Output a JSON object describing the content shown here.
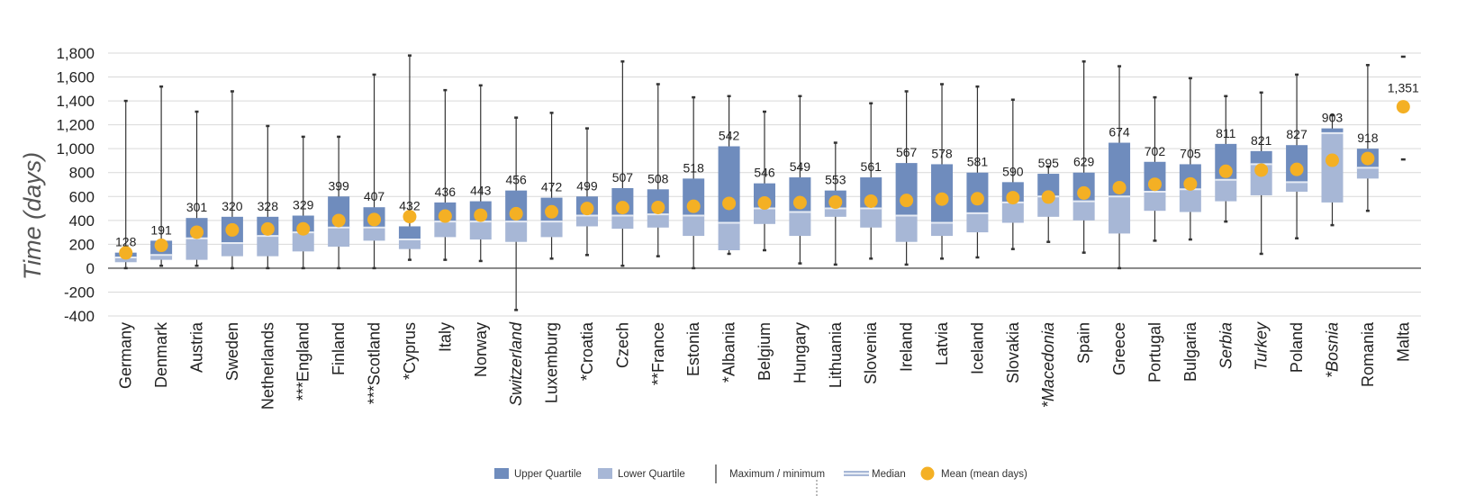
{
  "chart_data": {
    "type": "box",
    "ylabel": "Time (days)",
    "ylim": [
      -400,
      1800
    ],
    "yticks": [
      "-400",
      "-200",
      "0",
      "200",
      "400",
      "600",
      "800",
      "1,000",
      "1,200",
      "1,400",
      "1,600",
      "1,800"
    ],
    "ytick_values": [
      -400,
      -200,
      0,
      200,
      400,
      600,
      800,
      1000,
      1200,
      1400,
      1600,
      1800
    ],
    "grid": true,
    "legend_position": "bottom",
    "colors": {
      "upper": "#6f8cbd",
      "lower": "#a7b7d6",
      "median": "#e6ebf4",
      "mean": "#f4b024",
      "whisker": "#333333"
    },
    "legend": {
      "upper": "Upper Quartile",
      "lower": "Lower Quartile",
      "maxmin": "Maximum / minimum",
      "median": "Median",
      "mean": "Mean (mean days)"
    },
    "countries": [
      {
        "name": "Germany",
        "italic": false,
        "min": 0,
        "q1": 50,
        "median": 90,
        "q3": 130,
        "max": 1400,
        "mean": 128,
        "mean_label": "128"
      },
      {
        "name": "Denmark",
        "italic": false,
        "min": 20,
        "q1": 70,
        "median": 110,
        "q3": 230,
        "max": 1520,
        "mean": 191,
        "mean_label": "191"
      },
      {
        "name": "Austria",
        "italic": false,
        "min": 20,
        "q1": 70,
        "median": 250,
        "q3": 420,
        "max": 1310,
        "mean": 301,
        "mean_label": "301"
      },
      {
        "name": "Sweden",
        "italic": false,
        "min": 0,
        "q1": 100,
        "median": 210,
        "q3": 430,
        "max": 1480,
        "mean": 320,
        "mean_label": "320"
      },
      {
        "name": "Netherlands",
        "italic": false,
        "min": 0,
        "q1": 100,
        "median": 270,
        "q3": 430,
        "max": 1190,
        "mean": 328,
        "mean_label": "328"
      },
      {
        "name": "***England",
        "italic": false,
        "min": 0,
        "q1": 140,
        "median": 300,
        "q3": 440,
        "max": 1100,
        "mean": 329,
        "mean_label": "329"
      },
      {
        "name": "Finland",
        "italic": false,
        "min": 0,
        "q1": 180,
        "median": 340,
        "q3": 600,
        "max": 1100,
        "mean": 399,
        "mean_label": "399"
      },
      {
        "name": "***Scotland",
        "italic": false,
        "min": 0,
        "q1": 230,
        "median": 340,
        "q3": 510,
        "max": 1620,
        "mean": 407,
        "mean_label": "407"
      },
      {
        "name": "*Cyprus",
        "italic": false,
        "min": 70,
        "q1": 160,
        "median": 240,
        "q3": 350,
        "max": 1780,
        "mean": 432,
        "mean_label": "432"
      },
      {
        "name": "Italy",
        "italic": false,
        "min": 70,
        "q1": 260,
        "median": 390,
        "q3": 550,
        "max": 1490,
        "mean": 436,
        "mean_label": "436"
      },
      {
        "name": "Norway",
        "italic": false,
        "min": 60,
        "q1": 240,
        "median": 390,
        "q3": 560,
        "max": 1530,
        "mean": 443,
        "mean_label": "443"
      },
      {
        "name": "Switzerland",
        "italic": true,
        "min": -350,
        "q1": 220,
        "median": 390,
        "q3": 650,
        "max": 1260,
        "mean": 456,
        "mean_label": "456"
      },
      {
        "name": "Luxemburg",
        "italic": false,
        "min": 80,
        "q1": 260,
        "median": 390,
        "q3": 590,
        "max": 1300,
        "mean": 472,
        "mean_label": "472"
      },
      {
        "name": "*Croatia",
        "italic": false,
        "min": 110,
        "q1": 350,
        "median": 440,
        "q3": 600,
        "max": 1170,
        "mean": 499,
        "mean_label": "499"
      },
      {
        "name": "Czech",
        "italic": false,
        "min": 20,
        "q1": 330,
        "median": 440,
        "q3": 670,
        "max": 1730,
        "mean": 507,
        "mean_label": "507"
      },
      {
        "name": "**France",
        "italic": false,
        "min": 100,
        "q1": 340,
        "median": 450,
        "q3": 660,
        "max": 1540,
        "mean": 508,
        "mean_label": "508"
      },
      {
        "name": "Estonia",
        "italic": false,
        "min": 0,
        "q1": 270,
        "median": 440,
        "q3": 750,
        "max": 1430,
        "mean": 518,
        "mean_label": "518"
      },
      {
        "name": "*Albania",
        "italic": false,
        "min": 120,
        "q1": 150,
        "median": 380,
        "q3": 1020,
        "max": 1440,
        "mean": 542,
        "mean_label": "542"
      },
      {
        "name": "Belgium",
        "italic": false,
        "min": 150,
        "q1": 370,
        "median": 500,
        "q3": 710,
        "max": 1310,
        "mean": 546,
        "mean_label": "546"
      },
      {
        "name": "Hungary",
        "italic": false,
        "min": 40,
        "q1": 270,
        "median": 470,
        "q3": 760,
        "max": 1440,
        "mean": 549,
        "mean_label": "549"
      },
      {
        "name": "Lithuania",
        "italic": false,
        "min": 30,
        "q1": 430,
        "median": 500,
        "q3": 650,
        "max": 1050,
        "mean": 553,
        "mean_label": "553"
      },
      {
        "name": "Slovenia",
        "italic": false,
        "min": 80,
        "q1": 340,
        "median": 500,
        "q3": 760,
        "max": 1380,
        "mean": 561,
        "mean_label": "561"
      },
      {
        "name": "Ireland",
        "italic": false,
        "min": 30,
        "q1": 220,
        "median": 440,
        "q3": 880,
        "max": 1480,
        "mean": 567,
        "mean_label": "567"
      },
      {
        "name": "Latvia",
        "italic": false,
        "min": 80,
        "q1": 270,
        "median": 380,
        "q3": 870,
        "max": 1540,
        "mean": 578,
        "mean_label": "578"
      },
      {
        "name": "Iceland",
        "italic": false,
        "min": 90,
        "q1": 300,
        "median": 460,
        "q3": 800,
        "max": 1520,
        "mean": 581,
        "mean_label": "581"
      },
      {
        "name": "Slovakia",
        "italic": false,
        "min": 160,
        "q1": 380,
        "median": 550,
        "q3": 720,
        "max": 1410,
        "mean": 590,
        "mean_label": "590"
      },
      {
        "name": "*Macedonia",
        "italic": true,
        "min": 220,
        "q1": 430,
        "median": 600,
        "q3": 790,
        "max": 850,
        "mean": 595,
        "mean_label": "595"
      },
      {
        "name": "Spain",
        "italic": false,
        "min": 130,
        "q1": 400,
        "median": 560,
        "q3": 800,
        "max": 1730,
        "mean": 629,
        "mean_label": "629"
      },
      {
        "name": "Greece",
        "italic": false,
        "min": 0,
        "q1": 290,
        "median": 600,
        "q3": 1050,
        "max": 1690,
        "mean": 674,
        "mean_label": "674"
      },
      {
        "name": "Portugal",
        "italic": false,
        "min": 230,
        "q1": 480,
        "median": 640,
        "q3": 890,
        "max": 1430,
        "mean": 702,
        "mean_label": "702"
      },
      {
        "name": "Bulgaria",
        "italic": false,
        "min": 240,
        "q1": 470,
        "median": 660,
        "q3": 870,
        "max": 1590,
        "mean": 705,
        "mean_label": "705"
      },
      {
        "name": "Serbia",
        "italic": true,
        "min": 390,
        "q1": 560,
        "median": 740,
        "q3": 1040,
        "max": 1440,
        "mean": 811,
        "mean_label": "811"
      },
      {
        "name": "Turkey",
        "italic": true,
        "min": 120,
        "q1": 610,
        "median": 870,
        "q3": 980,
        "max": 1470,
        "mean": 821,
        "mean_label": "821"
      },
      {
        "name": "Poland",
        "italic": false,
        "min": 250,
        "q1": 640,
        "median": 720,
        "q3": 1030,
        "max": 1620,
        "mean": 827,
        "mean_label": "827"
      },
      {
        "name": "*Bosnia",
        "italic": true,
        "min": 360,
        "q1": 550,
        "median": 1130,
        "q3": 1170,
        "max": 1280,
        "mean": 903,
        "mean_label": "903"
      },
      {
        "name": "Romania",
        "italic": false,
        "min": 480,
        "q1": 750,
        "median": 840,
        "q3": 1000,
        "max": 1700,
        "mean": 918,
        "mean_label": "918"
      },
      {
        "name": "Malta",
        "italic": false,
        "min": 910,
        "q1": null,
        "median": null,
        "q3": null,
        "max": 1770,
        "mean": 1351,
        "mean_label": "1,351",
        "points_only": true
      }
    ]
  }
}
